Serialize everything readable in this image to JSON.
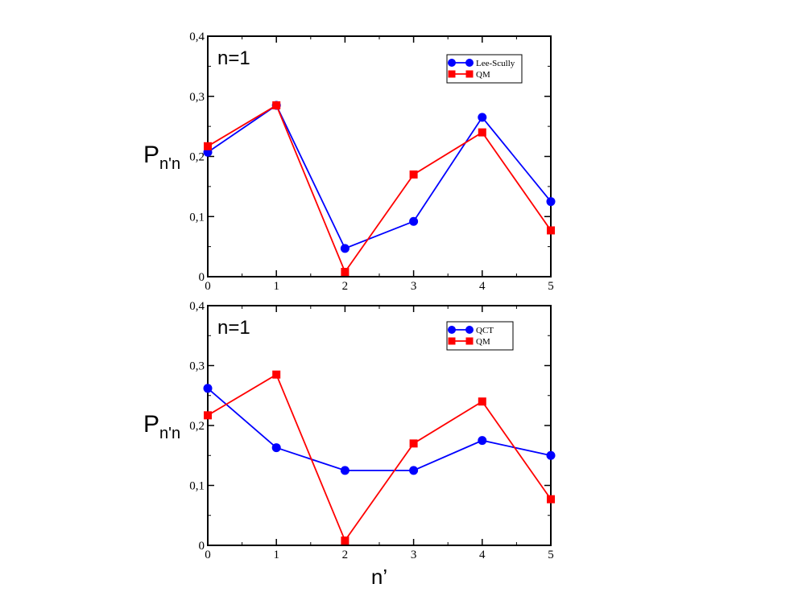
{
  "chart_data": [
    {
      "type": "line",
      "panel_label": "n=1",
      "ylabel": {
        "main": "P",
        "sub": "n'n"
      },
      "xlabel": "",
      "x": [
        0,
        1,
        2,
        3,
        4,
        5
      ],
      "xticks": [
        "0",
        "1",
        "2",
        "3",
        "4",
        "5"
      ],
      "yticks": [
        "0",
        "0,1",
        "0,2",
        "0,3",
        "0,4"
      ],
      "ylim": [
        0,
        0.4
      ],
      "xlim": [
        0,
        5
      ],
      "legend_position": "top-right",
      "series": [
        {
          "name": "Lee-Scully",
          "color": "#0000ff",
          "marker": "circle",
          "values": [
            0.207,
            0.285,
            0.047,
            0.092,
            0.265,
            0.125
          ]
        },
        {
          "name": "QM",
          "color": "#ff0000",
          "marker": "square",
          "values": [
            0.217,
            0.285,
            0.008,
            0.17,
            0.24,
            0.077
          ]
        }
      ]
    },
    {
      "type": "line",
      "panel_label": "n=1",
      "ylabel": {
        "main": "P",
        "sub": "n'n"
      },
      "xlabel": "n’",
      "x": [
        0,
        1,
        2,
        3,
        4,
        5
      ],
      "xticks": [
        "0",
        "1",
        "2",
        "3",
        "4",
        "5"
      ],
      "yticks": [
        "0",
        "0,1",
        "0,2",
        "0,3",
        "0,4"
      ],
      "ylim": [
        0,
        0.4
      ],
      "xlim": [
        0,
        5
      ],
      "legend_position": "top-right",
      "series": [
        {
          "name": "QCT",
          "color": "#0000ff",
          "marker": "circle",
          "values": [
            0.262,
            0.163,
            0.125,
            0.125,
            0.175,
            0.15
          ]
        },
        {
          "name": "QM",
          "color": "#ff0000",
          "marker": "square",
          "values": [
            0.217,
            0.285,
            0.008,
            0.17,
            0.24,
            0.077
          ]
        }
      ]
    }
  ]
}
